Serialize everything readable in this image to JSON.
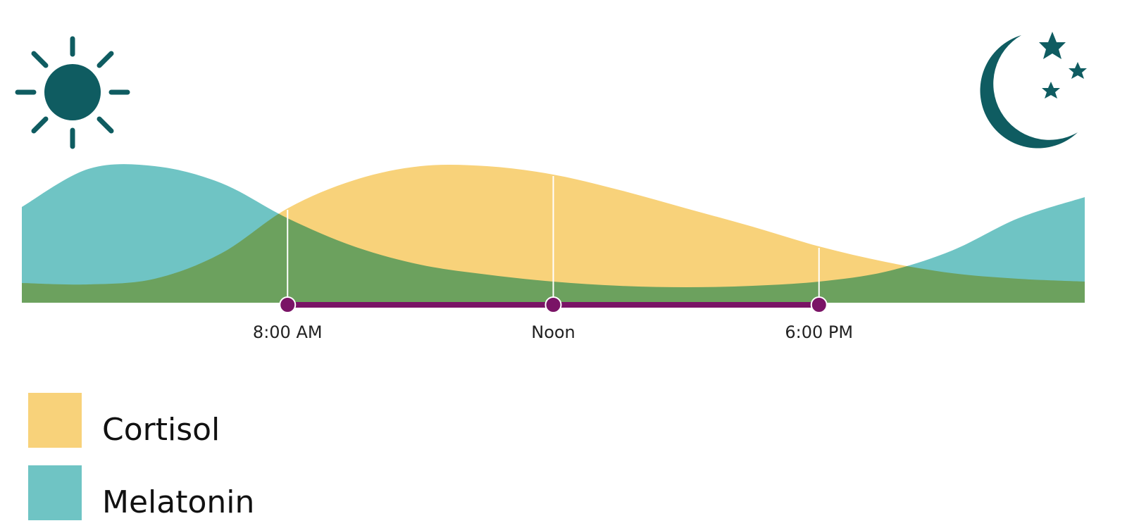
{
  "chart_data": {
    "type": "area",
    "categories": [
      null,
      null,
      null,
      null,
      "8:00 AM",
      null,
      null,
      null,
      "Noon",
      null,
      null,
      null,
      "6:00 PM",
      null,
      null,
      null,
      null
    ],
    "series": [
      {
        "name": "Cortisol",
        "color": "#f8d27a",
        "values": [
          14,
          13,
          17,
          35,
          67,
          87,
          97,
          97,
          91,
          80,
          67,
          54,
          40,
          29,
          21,
          17,
          15
        ]
      },
      {
        "name": "Melatonin",
        "color": "#6fc4c4",
        "values": [
          68,
          95,
          97,
          85,
          60,
          40,
          27,
          20,
          15,
          12,
          11,
          12,
          15,
          22,
          37,
          60,
          75
        ]
      }
    ],
    "ylim": [
      0,
      100
    ],
    "timeline_color": "#7a1466"
  }
}
